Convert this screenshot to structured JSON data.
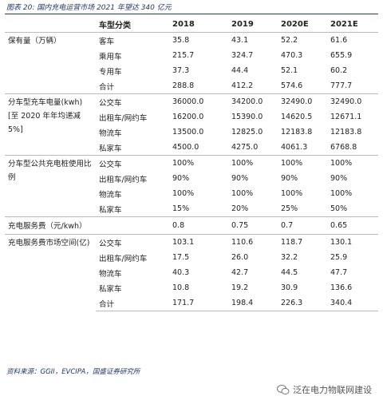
{
  "title": "图表 20: 国内充电运营市场 2021 年望达 340 亿元",
  "table": {
    "header": [
      null,
      "车型分类",
      "2018",
      "2019",
      "2020E",
      "2021E"
    ],
    "groups": [
      {
        "label": "保有量（万辆）",
        "rows": [
          [
            "客车",
            "35.8",
            "43.1",
            "52.2",
            "61.6"
          ],
          [
            "乘用车",
            "215.7",
            "324.7",
            "470.3",
            "655.9"
          ],
          [
            "专用车",
            "37.3",
            "44.4",
            "52.1",
            "60.2"
          ],
          [
            "合计",
            "288.8",
            "412.2",
            "574.6",
            "777.7"
          ]
        ]
      },
      {
        "label": "分车型充车电量(kwh)[至 2020 年年均递减 5%]",
        "rows": [
          [
            "公交车",
            "36000.0",
            "34200.0",
            "32490.0",
            "32490.0"
          ],
          [
            "出租车/网约车",
            "16200.0",
            "15390.0",
            "14620.5",
            "12671.1"
          ],
          [
            "物流车",
            "13500.0",
            "12825.0",
            "12183.8",
            "12183.8"
          ],
          [
            "私家车",
            "4500.0",
            "4275.0",
            "4061.3",
            "6768.8"
          ]
        ]
      },
      {
        "label": "分车型公共充电桩使用比例",
        "rows": [
          [
            "公交车",
            "100%",
            "100%",
            "100%",
            "100%"
          ],
          [
            "出租车/网约车",
            "90%",
            "90%",
            "90%",
            "90%"
          ],
          [
            "物流车",
            "100%",
            "100%",
            "100%",
            "100%"
          ],
          [
            "私家车",
            "15%",
            "20%",
            "25%",
            "50%"
          ]
        ]
      },
      {
        "label": "充电服务费（元/kwh）",
        "rows": [
          [
            null,
            "0.8",
            "0.75",
            "0.7",
            "0.65"
          ]
        ]
      },
      {
        "label": "充电服务费市场空间(亿)",
        "rows": [
          [
            "公交车",
            "103.1",
            "110.6",
            "118.7",
            "130.1"
          ],
          [
            "出租车/网约车",
            "17.5",
            "26.0",
            "32.2",
            "25.9"
          ],
          [
            "物流车",
            "40.3",
            "42.7",
            "44.5",
            "47.7"
          ],
          [
            "私家车",
            "10.8",
            "19.2",
            "30.9",
            "136.6"
          ],
          [
            "合计",
            "171.7",
            "198.4",
            "226.3",
            "340.4"
          ]
        ]
      }
    ]
  },
  "source": "资料来源：GGII，EVCIPA，国盛证券研究所",
  "watermark": "泛在电力物联网建设"
}
